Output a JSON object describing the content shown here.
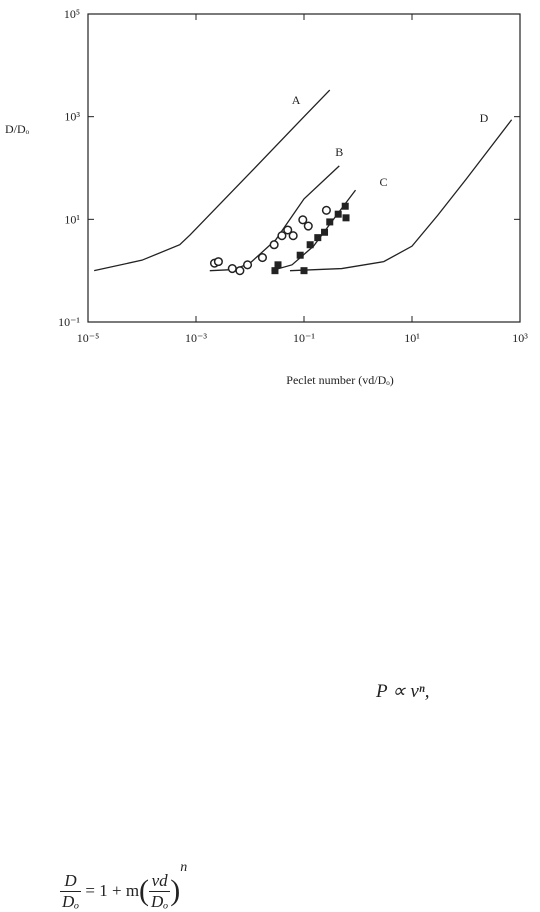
{
  "chart_data": {
    "type": "line",
    "y_label": "D/Dₒ",
    "x_label": "Peclet number (vd/Dₒ)",
    "xlog": true,
    "ylog": true,
    "xlim": [
      1e-05,
      1000
    ],
    "ylim": [
      0.1,
      100000
    ],
    "xticks": [
      {
        "value": 1e-05,
        "label": "10⁻⁵"
      },
      {
        "value": 0.001,
        "label": "10⁻³"
      },
      {
        "value": 0.1,
        "label": "10⁻¹"
      },
      {
        "value": 10,
        "label": "10¹"
      },
      {
        "value": 1000,
        "label": "10³"
      }
    ],
    "yticks": [
      {
        "value": 0.1,
        "label": "10⁻¹"
      },
      {
        "value": 10,
        "label": "10¹"
      },
      {
        "value": 1000,
        "label": "10³"
      },
      {
        "value": 100000,
        "label": "10⁵"
      }
    ],
    "series": [
      {
        "name": "A",
        "style": "line",
        "color": "#222",
        "x": [
          1.3e-05,
          0.0001,
          0.0005,
          0.00078,
          0.01,
          0.1,
          0.3
        ],
        "values": [
          1,
          1.6,
          3.2,
          5,
          80,
          1000,
          3300
        ]
      },
      {
        "name": "B",
        "style": "line",
        "color": "#222",
        "x": [
          0.0018,
          0.005,
          0.01,
          0.03,
          0.1,
          0.45
        ],
        "values": [
          1,
          1.05,
          1.4,
          4,
          25,
          110
        ]
      },
      {
        "name": "C",
        "style": "line",
        "color": "#222",
        "x": [
          0.025,
          0.06,
          0.15,
          0.4,
          0.9
        ],
        "values": [
          1,
          1.3,
          3,
          12,
          37
        ]
      },
      {
        "name": "D",
        "style": "line",
        "color": "#222",
        "x": [
          0.055,
          0.5,
          3,
          10,
          30,
          100,
          700
        ],
        "values": [
          1,
          1.1,
          1.5,
          3,
          12,
          60,
          870
        ]
      },
      {
        "style": "open-circle",
        "color": "#222",
        "x": [
          0.0022,
          0.0026,
          0.0047,
          0.0065,
          0.009,
          0.017,
          0.028,
          0.039,
          0.05,
          0.063,
          0.095,
          0.12,
          0.26
        ],
        "values": [
          1.4,
          1.5,
          1.1,
          1.0,
          1.3,
          1.8,
          3.2,
          4.8,
          6.2,
          4.8,
          9.8,
          7.4,
          15
        ]
      },
      {
        "style": "filled-square",
        "color": "#222",
        "x": [
          0.029,
          0.033,
          0.1,
          0.085,
          0.13,
          0.18,
          0.24,
          0.3,
          0.43,
          0.58,
          0.6
        ],
        "values": [
          1.0,
          1.3,
          1.0,
          2.0,
          3.2,
          4.4,
          5.6,
          8.9,
          12.6,
          18,
          10.7
        ]
      }
    ]
  },
  "formulas": {
    "proportional": "P ∝ vⁿ,",
    "equation": {
      "lhs_num": "D",
      "lhs_den": "Dₒ",
      "rhs": "= 1 + m",
      "inner_num": "vd",
      "inner_den": "Dₒ",
      "exponent": "n"
    }
  }
}
